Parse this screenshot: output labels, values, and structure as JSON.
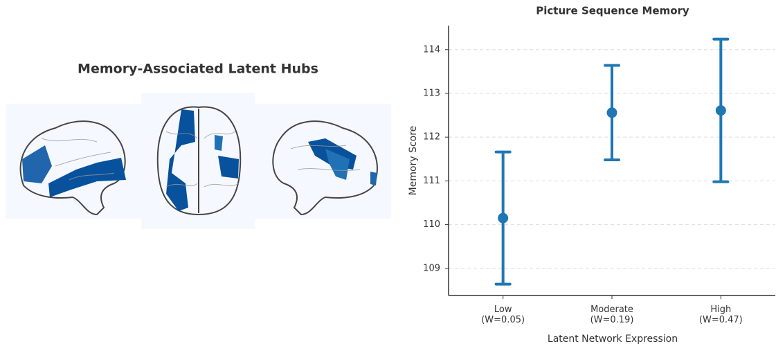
{
  "brain_panel": {
    "title": "Memory-Associated Latent Hubs"
  },
  "chart_data": {
    "type": "errorbar",
    "title": "Picture Sequence Memory",
    "xlabel": "Latent Network Expression",
    "ylabel": "Memory Score",
    "categories": [
      "Low\n(W=0.05)",
      "Moderate\n(W=0.19)",
      "High\n(W=0.47)"
    ],
    "series": [
      {
        "color": "#1f77b4",
        "values": [
          110.15,
          112.56,
          112.61
        ],
        "errors": [
          1.51,
          1.08,
          1.63
        ]
      }
    ],
    "ylim": [
      108.38,
      114.55
    ],
    "yticks": [
      109,
      110,
      111,
      112,
      113,
      114
    ],
    "grid": true
  }
}
